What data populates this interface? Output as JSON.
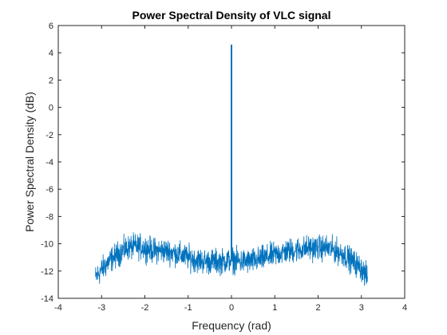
{
  "chart_data": {
    "type": "line",
    "title": "Power Spectral Density of VLC signal",
    "xlabel": "Frequency (rad)",
    "ylabel": "Power Spectral Density (dB)",
    "xlim": [
      -4,
      4
    ],
    "ylim": [
      -14,
      6
    ],
    "xticks": [
      "-4",
      "-3",
      "-2",
      "-1",
      "0",
      "1",
      "2",
      "3",
      "4"
    ],
    "yticks": [
      "-14",
      "-12",
      "-10",
      "-8",
      "-6",
      "-4",
      "-2",
      "0",
      "2",
      "4",
      "6"
    ],
    "grid": false,
    "series_color": "#0072BD",
    "series": [
      {
        "x": [
          -3.14,
          -3.0,
          -2.8,
          -2.6,
          -2.4,
          -2.2,
          -2.0,
          -1.8,
          -1.6,
          -1.4,
          -1.2,
          -1.0,
          -0.8,
          -0.6,
          -0.4,
          -0.2,
          -0.05,
          0.0,
          0.05,
          0.2,
          0.4,
          0.6,
          0.8,
          1.0,
          1.2,
          1.4,
          1.6,
          1.8,
          2.0,
          2.2,
          2.4,
          2.6,
          2.8,
          3.0,
          3.14
        ],
        "y": [
          -12.5,
          -11.9,
          -11.2,
          -10.7,
          -10.3,
          -10.2,
          -10.3,
          -10.5,
          -10.5,
          -10.6,
          -10.8,
          -11.0,
          -11.2,
          -11.3,
          -11.3,
          -11.3,
          -11.2,
          4.6,
          -11.2,
          -11.3,
          -11.3,
          -11.2,
          -11.0,
          -10.8,
          -10.6,
          -10.5,
          -10.4,
          -10.3,
          -10.3,
          -10.3,
          -10.5,
          -10.8,
          -11.3,
          -11.8,
          -12.5
        ]
      }
    ]
  }
}
